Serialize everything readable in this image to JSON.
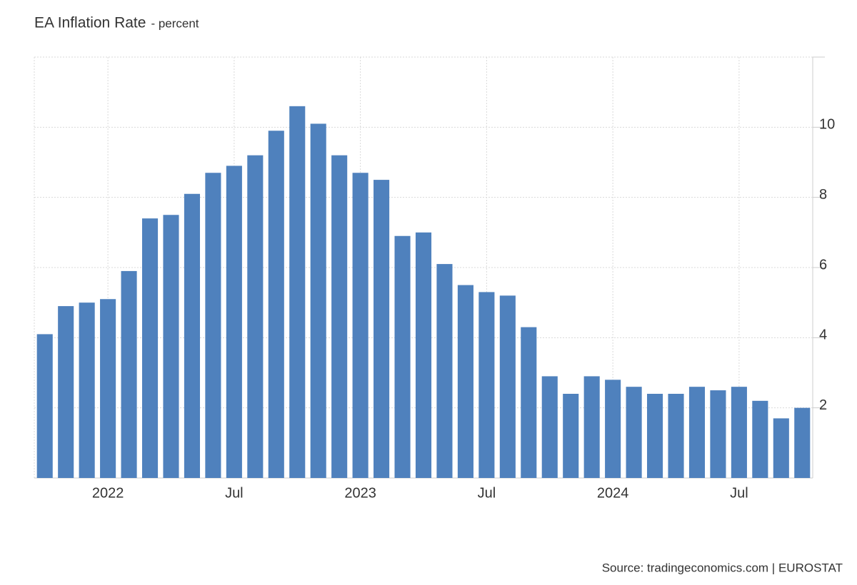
{
  "chart_data": {
    "type": "bar",
    "title": "EA Inflation Rate",
    "subtitle": "- percent",
    "source": "Source: tradingeconomics.com | EUROSTAT",
    "categories": [
      null,
      null,
      null,
      "2022",
      null,
      null,
      null,
      null,
      null,
      "Jul",
      null,
      null,
      null,
      null,
      null,
      "2023",
      null,
      null,
      null,
      null,
      null,
      "Jul",
      null,
      null,
      null,
      null,
      null,
      "2024",
      null,
      null,
      null,
      null,
      null,
      "Jul",
      null,
      null,
      null
    ],
    "values": [
      4.1,
      4.9,
      5.0,
      5.1,
      5.9,
      7.4,
      7.5,
      8.1,
      8.7,
      8.9,
      9.2,
      9.9,
      10.6,
      10.1,
      9.2,
      8.7,
      8.5,
      6.9,
      7.0,
      6.1,
      5.5,
      5.3,
      5.2,
      4.3,
      2.9,
      2.4,
      2.9,
      2.8,
      2.6,
      2.4,
      2.4,
      2.6,
      2.5,
      2.6,
      2.2,
      1.7,
      2.0
    ],
    "color": "#4f81bd",
    "ylim": [
      0,
      12
    ],
    "yticks": [
      2,
      4,
      6,
      8,
      10
    ],
    "grid": true
  }
}
